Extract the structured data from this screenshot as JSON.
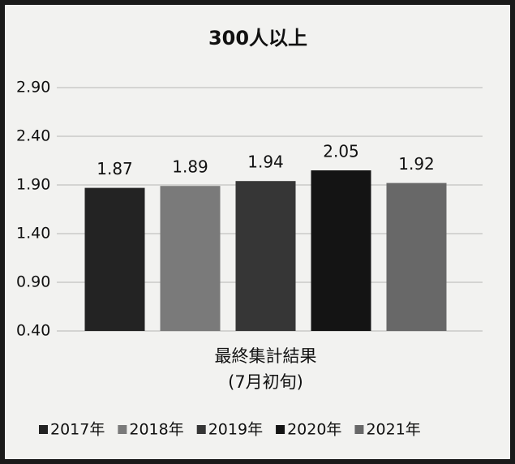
{
  "chart_data": {
    "type": "bar",
    "title": "300人以上",
    "categories": [
      [
        "最終集計結果",
        "(7月初旬)"
      ]
    ],
    "series": [
      {
        "name": "2017年",
        "color": "#232323",
        "values": [
          1.87
        ]
      },
      {
        "name": "2018年",
        "color": "#7a7a7a",
        "values": [
          1.89
        ]
      },
      {
        "name": "2019年",
        "color": "#363636",
        "values": [
          1.94
        ]
      },
      {
        "name": "2020年",
        "color": "#141414",
        "values": [
          2.05
        ]
      },
      {
        "name": "2021年",
        "color": "#686868",
        "values": [
          1.92
        ]
      }
    ],
    "ylim": [
      0.4,
      2.9
    ],
    "yticks": [
      {
        "value": 0.4,
        "label": "0.40"
      },
      {
        "value": 0.9,
        "label": "0.90"
      },
      {
        "value": 1.4,
        "label": "1.40"
      },
      {
        "value": 1.9,
        "label": "1.90"
      },
      {
        "value": 2.4,
        "label": "2.40"
      },
      {
        "value": 2.9,
        "label": "2.90"
      }
    ],
    "grid": true,
    "legend": "bottom"
  }
}
